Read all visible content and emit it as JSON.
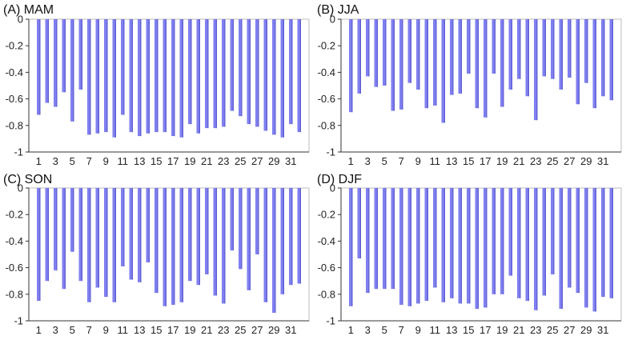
{
  "chart_data": [
    {
      "type": "bar",
      "title": "(A) MAM",
      "ylim": [
        -1,
        0
      ],
      "yticks": [
        "0",
        "-0.2",
        "-0.4",
        "-0.6",
        "-0.8",
        "-1"
      ],
      "xticks": [
        "1",
        "3",
        "5",
        "7",
        "9",
        "11",
        "13",
        "15",
        "17",
        "19",
        "21",
        "23",
        "25",
        "27",
        "29",
        "31"
      ],
      "categories": [
        1,
        2,
        3,
        4,
        5,
        6,
        7,
        8,
        9,
        10,
        11,
        12,
        13,
        14,
        15,
        16,
        17,
        18,
        19,
        20,
        21,
        22,
        23,
        24,
        25,
        26,
        27,
        28,
        29,
        30,
        31,
        32
      ],
      "values": [
        -0.72,
        -0.63,
        -0.66,
        -0.55,
        -0.77,
        -0.53,
        -0.87,
        -0.86,
        -0.85,
        -0.89,
        -0.72,
        -0.85,
        -0.88,
        -0.86,
        -0.85,
        -0.85,
        -0.88,
        -0.89,
        -0.79,
        -0.86,
        -0.82,
        -0.82,
        -0.81,
        -0.69,
        -0.73,
        -0.79,
        -0.81,
        -0.84,
        -0.87,
        -0.89,
        -0.79,
        -0.85
      ],
      "grid": false,
      "bar_color": "#8080f0"
    },
    {
      "type": "bar",
      "title": "(B) JJA",
      "ylim": [
        -1,
        0
      ],
      "yticks": [
        "0",
        "-0.2",
        "-0.4",
        "-0.6",
        "-0.8",
        "-1"
      ],
      "xticks": [
        "1",
        "3",
        "5",
        "7",
        "9",
        "11",
        "13",
        "15",
        "17",
        "19",
        "21",
        "23",
        "25",
        "27",
        "29",
        "31"
      ],
      "categories": [
        1,
        2,
        3,
        4,
        5,
        6,
        7,
        8,
        9,
        10,
        11,
        12,
        13,
        14,
        15,
        16,
        17,
        18,
        19,
        20,
        21,
        22,
        23,
        24,
        25,
        26,
        27,
        28,
        29,
        30,
        31,
        32
      ],
      "values": [
        -0.7,
        -0.56,
        -0.43,
        -0.51,
        -0.5,
        -0.69,
        -0.68,
        -0.48,
        -0.53,
        -0.67,
        -0.65,
        -0.78,
        -0.57,
        -0.56,
        -0.41,
        -0.67,
        -0.74,
        -0.41,
        -0.66,
        -0.53,
        -0.45,
        -0.58,
        -0.76,
        -0.43,
        -0.45,
        -0.53,
        -0.44,
        -0.64,
        -0.48,
        -0.67,
        -0.58,
        -0.61
      ],
      "grid": false,
      "bar_color": "#8080f0"
    },
    {
      "type": "bar",
      "title": "(C) SON",
      "ylim": [
        -1,
        0
      ],
      "yticks": [
        "0",
        "-0.2",
        "-0.4",
        "-0.6",
        "-0.8",
        "-1"
      ],
      "xticks": [
        "1",
        "3",
        "5",
        "7",
        "9",
        "11",
        "13",
        "15",
        "17",
        "19",
        "21",
        "23",
        "25",
        "27",
        "29",
        "31"
      ],
      "categories": [
        1,
        2,
        3,
        4,
        5,
        6,
        7,
        8,
        9,
        10,
        11,
        12,
        13,
        14,
        15,
        16,
        17,
        18,
        19,
        20,
        21,
        22,
        23,
        24,
        25,
        26,
        27,
        28,
        29,
        30,
        31,
        32
      ],
      "values": [
        -0.85,
        -0.7,
        -0.62,
        -0.76,
        -0.48,
        -0.7,
        -0.86,
        -0.75,
        -0.82,
        -0.86,
        -0.59,
        -0.69,
        -0.71,
        -0.56,
        -0.79,
        -0.89,
        -0.88,
        -0.86,
        -0.7,
        -0.73,
        -0.65,
        -0.81,
        -0.87,
        -0.47,
        -0.61,
        -0.77,
        -0.5,
        -0.86,
        -0.94,
        -0.8,
        -0.73,
        -0.72
      ],
      "grid": false,
      "bar_color": "#8080f0"
    },
    {
      "type": "bar",
      "title": "(D) DJF",
      "ylim": [
        -1,
        0
      ],
      "yticks": [
        "0",
        "-0.2",
        "-0.4",
        "-0.6",
        "-0.8",
        "-1"
      ],
      "xticks": [
        "1",
        "3",
        "5",
        "7",
        "9",
        "11",
        "13",
        "15",
        "17",
        "19",
        "21",
        "23",
        "25",
        "27",
        "29",
        "31"
      ],
      "categories": [
        1,
        2,
        3,
        4,
        5,
        6,
        7,
        8,
        9,
        10,
        11,
        12,
        13,
        14,
        15,
        16,
        17,
        18,
        19,
        20,
        21,
        22,
        23,
        24,
        25,
        26,
        27,
        28,
        29,
        30,
        31,
        32
      ],
      "values": [
        -0.89,
        -0.53,
        -0.79,
        -0.76,
        -0.76,
        -0.76,
        -0.88,
        -0.89,
        -0.87,
        -0.85,
        -0.75,
        -0.86,
        -0.83,
        -0.87,
        -0.87,
        -0.91,
        -0.9,
        -0.8,
        -0.8,
        -0.66,
        -0.83,
        -0.85,
        -0.92,
        -0.81,
        -0.65,
        -0.91,
        -0.75,
        -0.79,
        -0.9,
        -0.93,
        -0.82,
        -0.83
      ],
      "grid": false,
      "bar_color": "#8080f0"
    }
  ]
}
